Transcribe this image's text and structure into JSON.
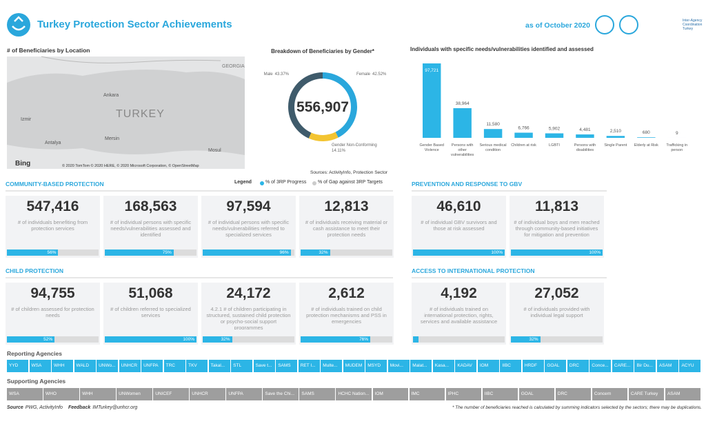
{
  "header": {
    "title": "Turkey Protection Sector Achievements",
    "date": "as of October 2020",
    "partner": "Inter-Agency Coordination Turkey"
  },
  "map": {
    "title": "# of Beneficiaries by Location",
    "country": "TURKEY",
    "neighbor": "GEORGIA",
    "cities": [
      "Ankara",
      "Izmir",
      "Antalya",
      "Mersin",
      "Mosul"
    ],
    "brand": "Bing",
    "attribution": "© 2020 TomTom © 2020 HERE, © 2020 Microsoft Corporation, © OpenStreetMap"
  },
  "chart_data": [
    {
      "type": "donut",
      "title": "Breakdown of Beneficiaries by Gender*",
      "center": "556,907",
      "source": "Sources: ActivityInfo, Protection Sector",
      "categories": [
        "Female",
        "Gender Non-Conforming",
        "Male"
      ],
      "values": [
        42.52,
        14.11,
        43.37
      ],
      "value_labels": [
        "42.52%",
        "14.11%",
        "43.37%"
      ],
      "colors": [
        "#2aa7dc",
        "#f3c431",
        "#3f5b6b"
      ]
    },
    {
      "type": "bar",
      "title": "Individuals with specific needs/vulnerabilities identified and assessed",
      "color": "#2cb5e6",
      "categories": [
        "Gender Based Violence",
        "Persons with other vulnerabilities",
        "Serious medical condition",
        "Children at risk",
        "LGBTI",
        "Persons with disabilities",
        "Single Parent",
        "Elderly at Risk",
        "Trafficking in person"
      ],
      "values": [
        97721,
        38964,
        11580,
        6766,
        5902,
        4481,
        2510,
        680,
        9
      ],
      "value_labels": [
        "97,721",
        "38,964",
        "11,580",
        "6,766",
        "5,902",
        "4,481",
        "2,510",
        "680",
        "9"
      ]
    }
  ],
  "legend": {
    "title": "Legend",
    "progress": "% of 3RP Progress",
    "gap": "% of Gap against 3RP Targets"
  },
  "sections": [
    {
      "title": "COMMUNITY-BASED PROTECTION",
      "cards": [
        {
          "value": "547,416",
          "description": "# of individuals benefiting from protection services",
          "progress": 56,
          "progress_label": "56%"
        },
        {
          "value": "168,563",
          "description": "# of individual persons with specific needs/vulnerabilities assessed and identified",
          "progress": 75,
          "progress_label": "75%"
        },
        {
          "value": "97,594",
          "description": "# of individual persons with specific needs/vulnerabilities referred to specialized services",
          "progress": 96,
          "progress_label": "96%"
        },
        {
          "value": "12,813",
          "description": "# of individuals receiving material or cash assistance to meet their protection needs",
          "progress": 32,
          "progress_label": "32%"
        }
      ]
    },
    {
      "title": "CHILD PROTECTION",
      "cards": [
        {
          "value": "94,755",
          "description": "# of children assessed for protection needs",
          "progress": 52,
          "progress_label": "52%"
        },
        {
          "value": "51,068",
          "description": "# of children referred to specialized services",
          "progress": 100,
          "progress_label": "100%"
        },
        {
          "value": "24,172",
          "description": "4.2.1 # of children participating in structured, sustained child protection or psycho-social support programmes",
          "progress": 32,
          "progress_label": "32%"
        },
        {
          "value": "2,612",
          "description": "# of individuals trained on child protection mechanisms and PSS in emergencies",
          "progress": 76,
          "progress_label": "76%"
        }
      ]
    },
    {
      "title": "PREVENTION AND RESPONSE TO GBV",
      "cards": [
        {
          "value": "46,610",
          "description": "# of individual GBV survivors and those at risk assessed",
          "progress": 100,
          "progress_label": "100%"
        },
        {
          "value": "11,813",
          "description": "# of individual boys and men reached through community-based initiatives for mitigation and prevention",
          "progress": 100,
          "progress_label": "100%"
        }
      ]
    },
    {
      "title": "ACCESS TO INTERNATIONAL PROTECTION",
      "cards": [
        {
          "value": "4,192",
          "description": "# of individuals trained on international protection, rights, services and available assistance",
          "progress": 6
        },
        {
          "value": "27,052",
          "description": "# of individuals provided with individual legal support",
          "progress": 32,
          "progress_label": "32%"
        }
      ]
    }
  ],
  "reporting": {
    "title": "Reporting Agencies",
    "agencies": [
      "YYD",
      "WSA",
      "WHH",
      "WALD",
      "UNWo...",
      "UNHCR",
      "UNFPA",
      "TRC",
      "TKV",
      "Takal...",
      "STL",
      "Save t...",
      "SAMS",
      "RET I...",
      "Multe...",
      "MUDEM",
      "MSYD",
      "Movi...",
      "Malat...",
      "Kasa...",
      "KADAV",
      "IOM",
      "IIBC",
      "HRDF",
      "GOAL",
      "DRC",
      "Conce...",
      "CARE...",
      "Bir Du...",
      "ASAM",
      "ACYU"
    ]
  },
  "supporting": {
    "title": "Supporting Agencies",
    "agencies": [
      "WSA",
      "WHO",
      "WHH",
      "UNWomen",
      "UNICEF",
      "UNHCR",
      "UNFPA",
      "Save the Chi...",
      "SAMS",
      "HCHC Nation...",
      "IOM",
      "IMC",
      "IPHC",
      "IIBC",
      "GOAL",
      "DRC",
      "Concern",
      "CARE Turkey",
      "ASAM"
    ]
  },
  "footer": {
    "source_label": "Source",
    "source": "PWG, ActivityInfo",
    "feedback_label": "Feedback",
    "feedback": "IMTurkey@unhcr.org",
    "note": "* The number of beneficiaries reached is calculated by summing indicators selected by the sectors; there may be duplications."
  }
}
